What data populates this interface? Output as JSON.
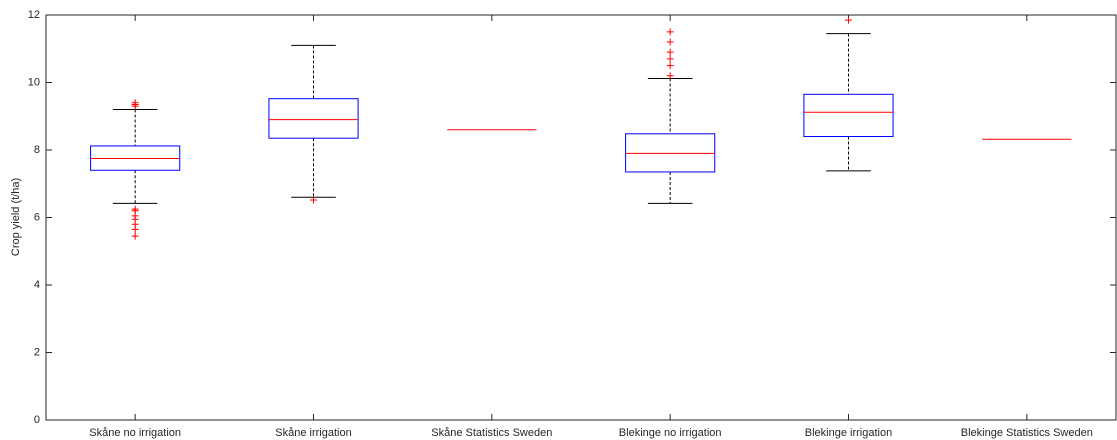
{
  "chart_data": {
    "type": "box",
    "ylabel": "Crop yield (t/ha)",
    "categories": [
      "Skåne no irrigation",
      "Skåne irrigation",
      "Skåne Statistics Sweden",
      "Blekinge no irrigation",
      "Blekinge irrigation",
      "Blekinge Statistics Sweden"
    ],
    "boxes": [
      {
        "whisker_low": 6.42,
        "q1": 7.4,
        "median": 7.75,
        "q3": 8.12,
        "whisker_high": 9.2,
        "outliers": [
          9.3,
          9.35,
          9.4,
          6.25,
          6.2,
          6.05,
          5.95,
          5.8,
          5.65,
          5.45
        ]
      },
      {
        "whisker_low": 6.6,
        "q1": 8.35,
        "median": 8.9,
        "q3": 9.52,
        "whisker_high": 11.1,
        "outliers": [
          6.52
        ]
      },
      {
        "median": 8.6
      },
      {
        "whisker_low": 6.42,
        "q1": 7.35,
        "median": 7.9,
        "q3": 8.48,
        "whisker_high": 10.12,
        "outliers": [
          10.2,
          10.5,
          10.7,
          10.9,
          11.2,
          11.5
        ]
      },
      {
        "whisker_low": 7.38,
        "q1": 8.4,
        "median": 9.12,
        "q3": 9.65,
        "whisker_high": 11.45,
        "outliers": [
          11.85
        ]
      },
      {
        "median": 8.32
      }
    ],
    "box_color": "#0000ff",
    "median_color": "#ff0000",
    "whisker_color": "#000000",
    "outlier_color": "#ff0000",
    "ylim": [
      0,
      12
    ],
    "yticks": [
      0,
      2,
      4,
      6,
      8,
      10,
      12
    ],
    "grid": false
  }
}
